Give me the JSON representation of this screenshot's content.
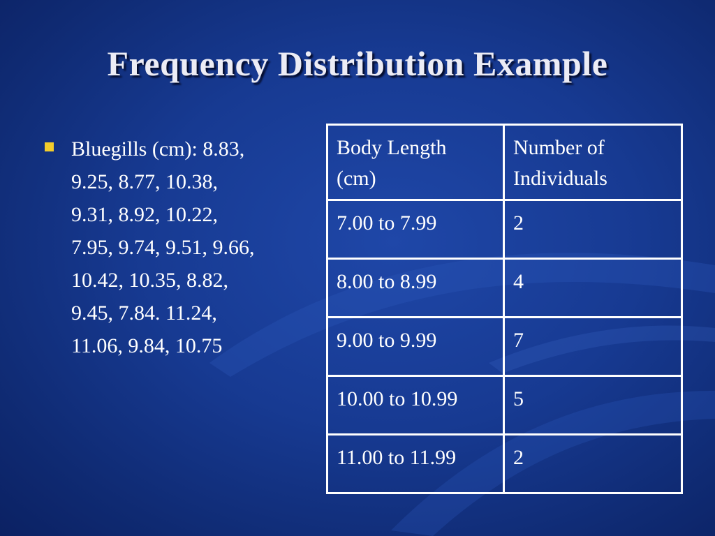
{
  "slide": {
    "title": "Frequency Distribution Example",
    "bullet": {
      "icon": "square-bullet-icon",
      "color": "#f2cc2c",
      "lines": [
        "Bluegills (cm): 8.83,",
        "9.25, 8.77, 10.38,",
        "9.31, 8.92, 10.22,",
        "7.95, 9.74, 9.51, 9.66,",
        "10.42, 10.35, 8.82,",
        "9.45, 7.84. 11.24,",
        "11.06, 9.84, 10.75"
      ]
    },
    "table": {
      "headers": [
        [
          "Body Length",
          "(cm)"
        ],
        [
          "Number of",
          "Individuals"
        ]
      ],
      "rows": [
        [
          "7.00 to 7.99",
          "2"
        ],
        [
          "8.00 to 8.99",
          "4"
        ],
        [
          "9.00 to 9.99",
          "7"
        ],
        [
          "10.00 to 10.99",
          "5"
        ],
        [
          "11.00 to 11.99",
          "2"
        ]
      ]
    }
  }
}
